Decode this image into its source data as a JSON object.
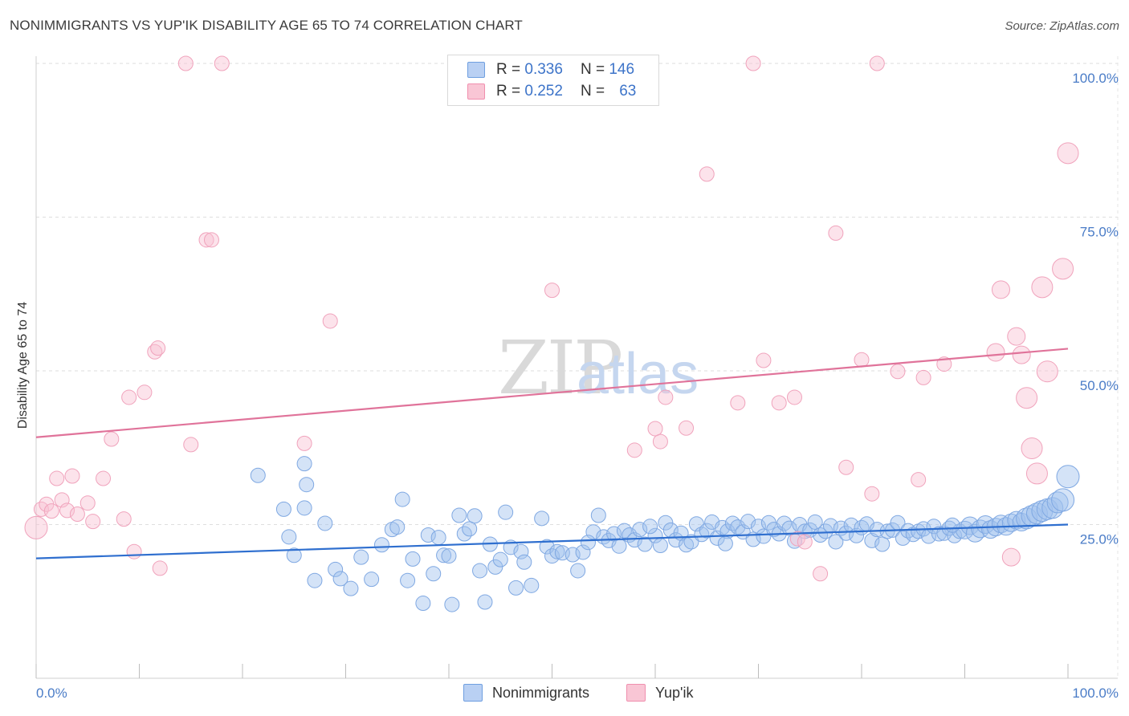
{
  "header": {
    "title": "NONIMMIGRANTS VS YUP'IK DISABILITY AGE 65 TO 74 CORRELATION CHART",
    "source": "Source: ZipAtlas.com"
  },
  "legend": {
    "series1": {
      "r_label": "R =",
      "r_value": "0.336",
      "n_label": "N =",
      "n_value": "146"
    },
    "series2": {
      "r_label": "R =",
      "r_value": "0.252",
      "n_label": "N =",
      "n_value": "63"
    }
  },
  "watermark": {
    "zip": "ZIP",
    "atlas": "atlas"
  },
  "chart_data": {
    "type": "scatter",
    "title": "NONIMMIGRANTS VS YUP'IK DISABILITY AGE 65 TO 74 CORRELATION CHART",
    "xlabel": "",
    "ylabel": "Disability Age 65 to 74",
    "xlim": [
      0,
      100
    ],
    "ylim": [
      0,
      100
    ],
    "x_tick_labels": [
      "0.0%",
      "100.0%"
    ],
    "y_tick_labels": [
      "100.0%",
      "75.0%",
      "50.0%",
      "25.0%"
    ],
    "y_tick_values": [
      100,
      75,
      50,
      25
    ],
    "grid": true,
    "legend_position": "top-center",
    "colors": {
      "nonimmigrants": "#6f9fe0",
      "yupik": "#f08fae",
      "blue_line": "#2f6fcf",
      "pink_line": "#e0739a"
    },
    "series": [
      {
        "name": "Nonimmigrants",
        "R": 0.336,
        "N": 146,
        "trendline": {
          "x": [
            0,
            100
          ],
          "y": [
            19.5,
            25.0
          ]
        },
        "points": [
          [
            21.5,
            33.0
          ],
          [
            24.0,
            27.5
          ],
          [
            24.5,
            23.0
          ],
          [
            25.0,
            20.0
          ],
          [
            26.0,
            34.9
          ],
          [
            26.2,
            31.5
          ],
          [
            26.0,
            27.7
          ],
          [
            27.0,
            15.9
          ],
          [
            28.0,
            25.2
          ],
          [
            29.0,
            17.7
          ],
          [
            29.5,
            16.2
          ],
          [
            30.5,
            14.6
          ],
          [
            31.5,
            19.7
          ],
          [
            32.5,
            16.1
          ],
          [
            33.5,
            21.7
          ],
          [
            34.5,
            24.2
          ],
          [
            35.0,
            24.6
          ],
          [
            35.5,
            29.1
          ],
          [
            36.0,
            15.9
          ],
          [
            36.5,
            19.4
          ],
          [
            37.5,
            12.2
          ],
          [
            38.0,
            23.3
          ],
          [
            38.5,
            17.0
          ],
          [
            39.0,
            22.9
          ],
          [
            39.5,
            20.0
          ],
          [
            40.0,
            19.9
          ],
          [
            40.3,
            12.0
          ],
          [
            41.0,
            26.5
          ],
          [
            41.5,
            23.5
          ],
          [
            42.0,
            24.3
          ],
          [
            42.5,
            26.4
          ],
          [
            43.0,
            17.5
          ],
          [
            43.5,
            12.4
          ],
          [
            44.0,
            21.8
          ],
          [
            44.5,
            18.1
          ],
          [
            45.0,
            19.3
          ],
          [
            45.5,
            27.0
          ],
          [
            46.0,
            21.3
          ],
          [
            46.5,
            14.7
          ],
          [
            47.0,
            20.6
          ],
          [
            47.3,
            18.9
          ],
          [
            48.0,
            15.1
          ],
          [
            49.0,
            26.0
          ],
          [
            49.5,
            21.4
          ],
          [
            50.0,
            19.9
          ],
          [
            50.5,
            20.6
          ],
          [
            51.0,
            20.4
          ],
          [
            52.0,
            20.1
          ],
          [
            52.5,
            17.5
          ],
          [
            53.0,
            20.5
          ],
          [
            54.0,
            23.8
          ],
          [
            54.5,
            26.5
          ],
          [
            55.0,
            23.0
          ],
          [
            55.5,
            22.4
          ],
          [
            56.0,
            23.5
          ],
          [
            57.0,
            24.0
          ],
          [
            57.5,
            23.3
          ],
          [
            58.0,
            22.5
          ],
          [
            58.5,
            24.2
          ],
          [
            59.0,
            21.8
          ],
          [
            60.0,
            23.2
          ],
          [
            60.5,
            21.6
          ],
          [
            61.0,
            25.3
          ],
          [
            61.5,
            24.1
          ],
          [
            62.0,
            22.5
          ],
          [
            62.5,
            23.6
          ],
          [
            63.0,
            21.7
          ],
          [
            63.5,
            22.2
          ],
          [
            64.0,
            25.1
          ],
          [
            64.5,
            23.4
          ],
          [
            65.0,
            24.0
          ],
          [
            65.5,
            25.4
          ],
          [
            66.0,
            22.8
          ],
          [
            66.5,
            24.5
          ],
          [
            67.0,
            23.9
          ],
          [
            67.5,
            25.2
          ],
          [
            68.0,
            24.6
          ],
          [
            68.5,
            23.8
          ],
          [
            69.0,
            25.5
          ],
          [
            69.5,
            22.6
          ],
          [
            70.0,
            24.7
          ],
          [
            70.5,
            23.1
          ],
          [
            71.0,
            25.3
          ],
          [
            71.5,
            24.2
          ],
          [
            72.0,
            23.5
          ],
          [
            72.5,
            25.2
          ],
          [
            73.0,
            24.4
          ],
          [
            73.5,
            22.3
          ],
          [
            74.0,
            25.0
          ],
          [
            74.5,
            23.9
          ],
          [
            75.0,
            24.1
          ],
          [
            75.5,
            25.4
          ],
          [
            76.0,
            23.3
          ],
          [
            76.5,
            23.9
          ],
          [
            77.0,
            24.8
          ],
          [
            77.5,
            22.2
          ],
          [
            78.0,
            24.4
          ],
          [
            78.5,
            23.6
          ],
          [
            79.0,
            24.9
          ],
          [
            79.5,
            23.2
          ],
          [
            80.0,
            24.5
          ],
          [
            80.5,
            25.1
          ],
          [
            81.0,
            22.4
          ],
          [
            81.5,
            24.2
          ],
          [
            82.0,
            21.8
          ],
          [
            82.5,
            23.9
          ],
          [
            83.0,
            24.1
          ],
          [
            83.5,
            25.3
          ],
          [
            84.0,
            22.8
          ],
          [
            84.5,
            24.0
          ],
          [
            85.0,
            23.4
          ],
          [
            85.5,
            23.9
          ],
          [
            86.0,
            24.3
          ],
          [
            86.5,
            23.1
          ],
          [
            87.0,
            24.7
          ],
          [
            87.5,
            23.5
          ],
          [
            88.0,
            23.6
          ],
          [
            88.5,
            24.4
          ],
          [
            89.0,
            23.2
          ],
          [
            89.5,
            23.9
          ],
          [
            90.0,
            24.1
          ],
          [
            90.5,
            24.8
          ],
          [
            91.0,
            23.6
          ],
          [
            91.5,
            24.3
          ],
          [
            92.0,
            25.0
          ],
          [
            92.5,
            24.2
          ],
          [
            93.0,
            24.6
          ],
          [
            93.5,
            25.1
          ],
          [
            94.0,
            24.7
          ],
          [
            94.5,
            25.3
          ],
          [
            95.0,
            25.7
          ],
          [
            95.5,
            25.4
          ],
          [
            96.0,
            26.0
          ],
          [
            96.5,
            26.4
          ],
          [
            97.0,
            26.8
          ],
          [
            97.5,
            27.2
          ],
          [
            98.0,
            27.5
          ],
          [
            98.5,
            27.7
          ],
          [
            99.0,
            28.6
          ],
          [
            99.5,
            29.0
          ],
          [
            100.0,
            32.8
          ],
          [
            56.5,
            21.5
          ],
          [
            53.5,
            22.1
          ],
          [
            59.5,
            24.7
          ],
          [
            66.8,
            21.9
          ],
          [
            88.8,
            24.9
          ]
        ]
      },
      {
        "name": "Yup'ik",
        "R": 0.252,
        "N": 63,
        "trendline": {
          "x": [
            0,
            100
          ],
          "y": [
            39.2,
            53.6
          ]
        },
        "points": [
          [
            0.0,
            24.5
          ],
          [
            0.5,
            27.5
          ],
          [
            1.0,
            28.3
          ],
          [
            1.5,
            27.2
          ],
          [
            2.0,
            32.5
          ],
          [
            2.5,
            29.0
          ],
          [
            3.0,
            27.3
          ],
          [
            3.5,
            32.9
          ],
          [
            4.0,
            26.7
          ],
          [
            5.0,
            28.5
          ],
          [
            5.5,
            25.5
          ],
          [
            6.5,
            32.5
          ],
          [
            7.3,
            38.9
          ],
          [
            8.5,
            25.9
          ],
          [
            9.0,
            45.7
          ],
          [
            9.5,
            20.6
          ],
          [
            10.5,
            46.5
          ],
          [
            11.5,
            53.1
          ],
          [
            11.8,
            53.7
          ],
          [
            12.0,
            17.9
          ],
          [
            14.5,
            100.0
          ],
          [
            15.0,
            38.0
          ],
          [
            16.5,
            71.3
          ],
          [
            17.0,
            71.3
          ],
          [
            18.0,
            100.0
          ],
          [
            26.0,
            38.2
          ],
          [
            28.5,
            58.1
          ],
          [
            50.0,
            63.1
          ],
          [
            58.0,
            37.1
          ],
          [
            60.0,
            40.6
          ],
          [
            60.5,
            38.5
          ],
          [
            61.0,
            45.7
          ],
          [
            63.0,
            40.7
          ],
          [
            65.0,
            82.0
          ],
          [
            68.0,
            44.8
          ],
          [
            69.5,
            100.0
          ],
          [
            70.5,
            51.7
          ],
          [
            72.0,
            44.8
          ],
          [
            73.5,
            45.7
          ],
          [
            73.8,
            22.7
          ],
          [
            74.5,
            22.2
          ],
          [
            76.0,
            17.0
          ],
          [
            77.5,
            72.4
          ],
          [
            78.5,
            34.3
          ],
          [
            80.0,
            51.8
          ],
          [
            81.0,
            30.0
          ],
          [
            81.5,
            100.0
          ],
          [
            83.5,
            49.9
          ],
          [
            85.5,
            32.3
          ],
          [
            86.0,
            48.9
          ],
          [
            88.0,
            51.1
          ],
          [
            93.0,
            53.0
          ],
          [
            93.5,
            63.2
          ],
          [
            94.5,
            19.7
          ],
          [
            95.0,
            55.6
          ],
          [
            95.5,
            52.6
          ],
          [
            96.0,
            45.6
          ],
          [
            96.5,
            37.4
          ],
          [
            97.0,
            33.3
          ],
          [
            97.5,
            63.6
          ],
          [
            98.0,
            49.9
          ],
          [
            99.5,
            66.6
          ],
          [
            100.0,
            85.4
          ]
        ]
      }
    ]
  },
  "bottom_legend": {
    "item1": "Nonimmigrants",
    "item2": "Yup'ik"
  }
}
